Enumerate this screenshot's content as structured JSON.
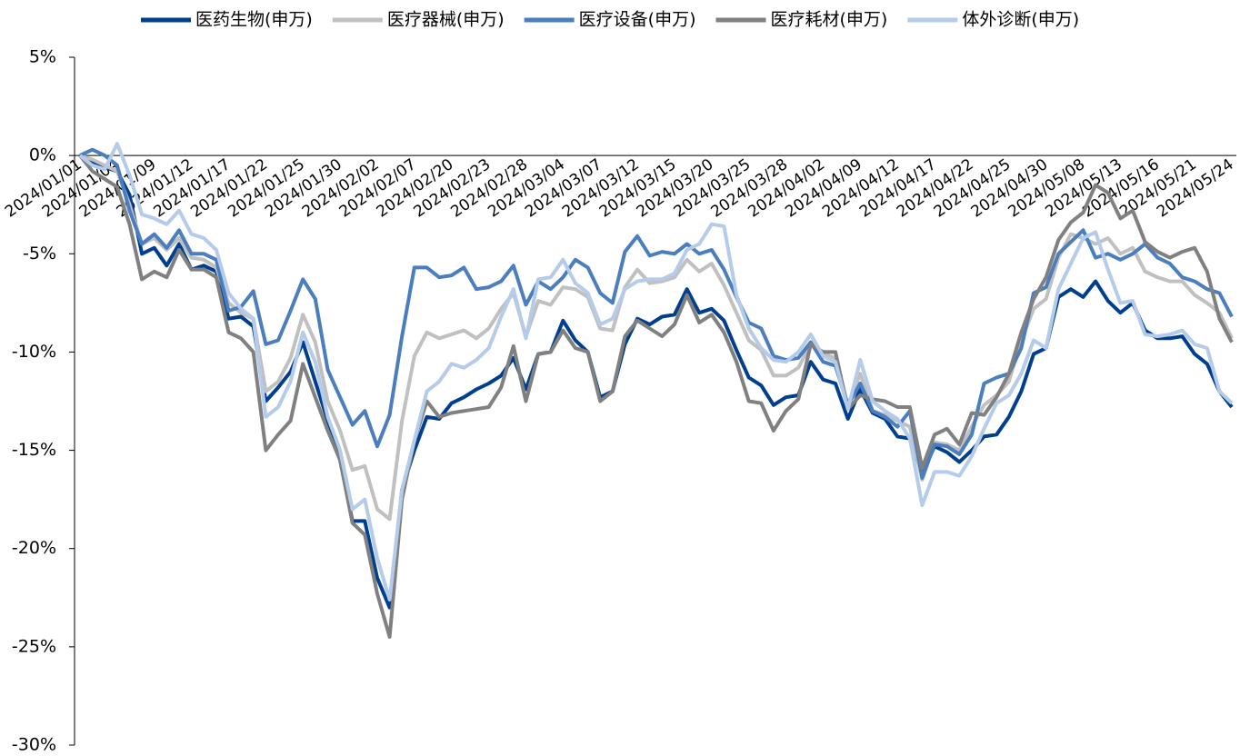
{
  "chart_data": {
    "type": "line",
    "categories": [
      "2024/01/01",
      null,
      null,
      "2024/01/04",
      null,
      null,
      "2024/01/09",
      null,
      null,
      "2024/01/12",
      null,
      null,
      "2024/01/17",
      null,
      null,
      "2024/01/22",
      null,
      null,
      "2024/01/25",
      null,
      null,
      "2024/01/30",
      null,
      null,
      "2024/02/02",
      null,
      null,
      "2024/02/07",
      null,
      null,
      "2024/02/20",
      null,
      null,
      "2024/02/23",
      null,
      null,
      "2024/02/28",
      null,
      null,
      "2024/03/04",
      null,
      null,
      "2024/03/07",
      null,
      null,
      "2024/03/12",
      null,
      null,
      "2024/03/15",
      null,
      null,
      "2024/03/20",
      null,
      null,
      "2024/03/25",
      null,
      null,
      "2024/03/28",
      null,
      null,
      "2024/04/02",
      null,
      null,
      "2024/04/09",
      null,
      null,
      "2024/04/12",
      null,
      null,
      "2024/04/17",
      null,
      null,
      "2024/04/22",
      null,
      null,
      "2024/04/25",
      null,
      null,
      "2024/04/30",
      null,
      null,
      "2024/05/08",
      null,
      null,
      "2024/05/13",
      null,
      null,
      "2024/05/16",
      null,
      null,
      "2024/05/21",
      null,
      null,
      "2024/05/24"
    ],
    "series": [
      {
        "name": "医药生物(申万)",
        "color": "#003f8f",
        "values": [
          0,
          -0.3,
          -0.6,
          -0.8,
          -2,
          -5,
          -4.7,
          -5.6,
          -4.5,
          -5.8,
          -5.6,
          -5.9,
          -8.3,
          -8.2,
          -8.7,
          -12.5,
          -11.8,
          -11,
          -9.5,
          -11.5,
          -13.5,
          -15.5,
          -18.6,
          -18.6,
          -21.5,
          -23,
          -17,
          -15,
          -13.3,
          -13.4,
          -12.6,
          -12.3,
          -11.9,
          -11.6,
          -11.2,
          -10.3,
          -11.9,
          -10.1,
          -10,
          -8.4,
          -9.4,
          -10,
          -12.3,
          -12,
          -9.6,
          -8.3,
          -8.6,
          -8.2,
          -8.1,
          -6.8,
          -8,
          -7.8,
          -8.4,
          -9.9,
          -11.3,
          -11.7,
          -12.7,
          -12.3,
          -12.2,
          -10.5,
          -11.4,
          -11.6,
          -13.4,
          -11.9,
          -13.1,
          -13.4,
          -14.3,
          -14.4,
          -16.2,
          -14.8,
          -15.1,
          -15.6,
          -15,
          -14.3,
          -14.2,
          -13.3,
          -12,
          -10.1,
          -9.8,
          -7.2,
          -6.8,
          -7.2,
          -6.4,
          -7.4,
          -8,
          -7.5,
          -8.9,
          -9.3,
          -9.3,
          -9.2,
          -10.1,
          -10.6,
          -12,
          -12.8
        ]
      },
      {
        "name": "医疗器械(申万)",
        "color": "#c0c0c0",
        "values": [
          0,
          -0.2,
          -0.5,
          -0.8,
          -2.5,
          -4.5,
          -4.2,
          -4.8,
          -4.2,
          -5.2,
          -5.3,
          -5.7,
          -7.5,
          -8,
          -8.3,
          -12,
          -11.5,
          -10.3,
          -8.1,
          -9.5,
          -12.5,
          -14,
          -16,
          -15.8,
          -18,
          -18.5,
          -13.5,
          -10.2,
          -9,
          -9.3,
          -9.1,
          -8.9,
          -9.3,
          -8.8,
          -7.8,
          -7,
          -9.2,
          -7.4,
          -7.6,
          -6.7,
          -6.8,
          -7.2,
          -8.8,
          -8.9,
          -6.7,
          -5.8,
          -6.5,
          -6.4,
          -6.2,
          -5.3,
          -5.9,
          -5.5,
          -6.6,
          -8,
          -9.4,
          -9.9,
          -11.2,
          -11.2,
          -10.8,
          -9.6,
          -10.1,
          -10.3,
          -12.7,
          -11.1,
          -13,
          -13.2,
          -13.5,
          -13.8,
          -16.5,
          -14.6,
          -14.7,
          -15,
          -13.8,
          -12.7,
          -12.2,
          -11.5,
          -9.4,
          -7.8,
          -7.3,
          -5.2,
          -4,
          -4.2,
          -4.5,
          -4.2,
          -5,
          -4.7,
          -5.9,
          -6.2,
          -6.4,
          -6.4,
          -7.1,
          -7.5,
          -8,
          -9.3
        ]
      },
      {
        "name": "医疗设备(申万)",
        "color": "#4a7ebf",
        "values": [
          0,
          0.3,
          0,
          -0.5,
          -2.8,
          -4.5,
          -4,
          -4.7,
          -3.8,
          -5,
          -5,
          -5.3,
          -7.9,
          -7.7,
          -6.9,
          -9.6,
          -9.4,
          -7.9,
          -6.3,
          -7.3,
          -10.9,
          -12.3,
          -13.7,
          -13,
          -14.8,
          -13.2,
          -9.2,
          -5.7,
          -5.7,
          -6.2,
          -6.1,
          -5.7,
          -6.8,
          -6.7,
          -6.4,
          -5.6,
          -7.6,
          -6.4,
          -6.8,
          -6.2,
          -5.3,
          -5.7,
          -7,
          -7.5,
          -4.9,
          -4.1,
          -5.1,
          -4.9,
          -5,
          -4.5,
          -5,
          -4.8,
          -5.8,
          -7.2,
          -8.5,
          -8.8,
          -10.2,
          -10.4,
          -10.3,
          -9.5,
          -10.5,
          -10.7,
          -12.7,
          -11.6,
          -13,
          -13.3,
          -13.8,
          -13,
          -16.4,
          -14.7,
          -14.8,
          -15.2,
          -14.2,
          -11.6,
          -11.3,
          -11.1,
          -9.8,
          -7,
          -6.7,
          -5,
          -4.4,
          -3.8,
          -5.2,
          -5,
          -5.3,
          -5,
          -4.5,
          -5.2,
          -5.5,
          -6.2,
          -6.4,
          -6.8,
          -7,
          -8.2
        ]
      },
      {
        "name": "医疗耗材(申万)",
        "color": "#808080",
        "values": [
          0,
          -0.8,
          -1.2,
          -1.6,
          -3.5,
          -6.3,
          -5.9,
          -6.2,
          -4.8,
          -5.8,
          -5.8,
          -6.2,
          -9,
          -9.3,
          -10,
          -15,
          -14.2,
          -13.5,
          -10.6,
          -12.3,
          -14,
          -15.5,
          -18.7,
          -19.3,
          -22.3,
          -24.5,
          -17.5,
          -14.5,
          -12.5,
          -13.3,
          -13.1,
          -13,
          -12.9,
          -12.8,
          -11.8,
          -9.7,
          -12.5,
          -10.1,
          -10,
          -8.9,
          -9.8,
          -10,
          -12.5,
          -12,
          -9.2,
          -8.4,
          -8.8,
          -9.2,
          -8.6,
          -7.1,
          -8.5,
          -8.1,
          -9,
          -10.5,
          -12.5,
          -12.6,
          -14,
          -13,
          -12.4,
          -9.6,
          -10,
          -10,
          -12.9,
          -12.2,
          -12.4,
          -12.5,
          -12.8,
          -12.8,
          -15.9,
          -14.2,
          -13.9,
          -14.7,
          -13.1,
          -13.2,
          -12.3,
          -11.1,
          -9,
          -7.3,
          -6.2,
          -4.3,
          -3.4,
          -2.9,
          -1.5,
          -1.9,
          -3.2,
          -2.8,
          -4.4,
          -4.9,
          -5.2,
          -4.9,
          -4.7,
          -5.9,
          -8.3,
          -9.5
        ]
      },
      {
        "name": "体外诊断(申万)",
        "color": "#b4cbea",
        "values": [
          0,
          -0.5,
          -0.7,
          0.6,
          -1,
          -3,
          -3.2,
          -3.5,
          -2.8,
          -4,
          -4.2,
          -4.8,
          -7,
          -7.8,
          -8.3,
          -13.3,
          -12.8,
          -11.5,
          -9,
          -10.5,
          -13.3,
          -15,
          -18,
          -17.5,
          -20.5,
          -22.6,
          -17,
          -14.5,
          -12,
          -11.5,
          -10.6,
          -10.8,
          -10.4,
          -9.8,
          -8.2,
          -6.8,
          -9.3,
          -6.3,
          -6.2,
          -5.3,
          -6.5,
          -7,
          -8.6,
          -8.3,
          -6.8,
          -6.4,
          -6.3,
          -6.3,
          -6,
          -4.8,
          -4.5,
          -3.5,
          -3.6,
          -7.1,
          -8.8,
          -9.8,
          -10.4,
          -10.5,
          -10,
          -9.1,
          -10.2,
          -10.5,
          -12.9,
          -10.4,
          -12.5,
          -13,
          -13.4,
          -14.4,
          -17.8,
          -16.1,
          -16.1,
          -16.3,
          -15.3,
          -13.9,
          -12.6,
          -12.2,
          -11.1,
          -9.4,
          -9.8,
          -6.8,
          -5.5,
          -4.2,
          -3.9,
          -5.8,
          -7.5,
          -7.4,
          -9.1,
          -9.2,
          -9.1,
          -8.9,
          -9.6,
          -9.8,
          -12,
          -12.6
        ]
      }
    ],
    "ylim": [
      -30,
      5
    ],
    "yticks": [
      {
        "value": 5,
        "label": "5%"
      },
      {
        "value": 0,
        "label": "0%"
      },
      {
        "value": -5,
        "label": "-5%"
      },
      {
        "value": -10,
        "label": "-10%"
      },
      {
        "value": -15,
        "label": "-15%"
      },
      {
        "value": -20,
        "label": "-20%"
      },
      {
        "value": -25,
        "label": "-25%"
      },
      {
        "value": -30,
        "label": "-30%"
      }
    ],
    "legend": "top"
  }
}
